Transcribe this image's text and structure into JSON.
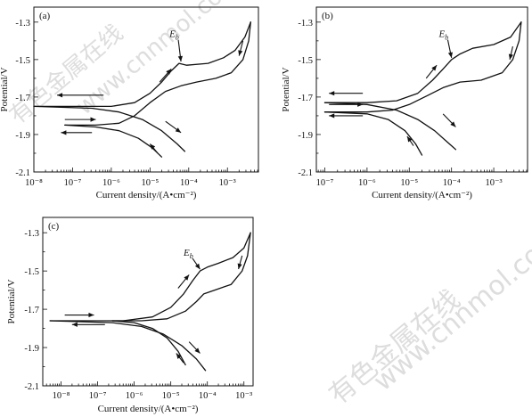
{
  "chart_data": [
    {
      "type": "line",
      "panel_label": "(a)",
      "xlabel": "Current density/(A•cm⁻²)",
      "ylabel": "Potential/V",
      "x_scale": "log",
      "xlim_log10": [
        -8,
        -2.2
      ],
      "ylim": [
        -2.1,
        -1.22
      ],
      "x_ticks": [
        {
          "log": -8,
          "label": "10⁻⁸"
        },
        {
          "log": -7,
          "label": "10⁻⁷"
        },
        {
          "log": -6,
          "label": "10⁻⁶"
        },
        {
          "log": -5,
          "label": "10⁻⁵"
        },
        {
          "log": -4,
          "label": "10⁻⁴"
        },
        {
          "log": -3,
          "label": "10⁻³"
        }
      ],
      "y_ticks": [
        {
          "value": -1.3,
          "label": "-1.3"
        },
        {
          "value": -1.5,
          "label": "-1.5"
        },
        {
          "value": -1.7,
          "label": "-1.7"
        },
        {
          "value": -1.9,
          "label": "-1.9"
        },
        {
          "value": -2.1,
          "label": "-2.1"
        }
      ],
      "annotation": {
        "text": "E",
        "sub": "b",
        "at": {
          "log": -4.2,
          "value": -1.52
        },
        "label_at": {
          "log": -4.5,
          "value": -1.38
        }
      },
      "series": [
        {
          "points": [
            [
              -2.4,
              -1.3
            ],
            [
              -2.55,
              -1.38
            ],
            [
              -2.8,
              -1.45
            ],
            [
              -3.1,
              -1.49
            ],
            [
              -3.5,
              -1.52
            ],
            [
              -4.05,
              -1.53
            ],
            [
              -4.25,
              -1.52
            ],
            [
              -4.45,
              -1.56
            ],
            [
              -4.7,
              -1.62
            ],
            [
              -5.0,
              -1.68
            ],
            [
              -5.4,
              -1.73
            ],
            [
              -6.0,
              -1.75
            ],
            [
              -8.0,
              -1.75
            ]
          ]
        },
        {
          "points": [
            [
              -2.4,
              -1.3
            ],
            [
              -2.45,
              -1.4
            ],
            [
              -2.6,
              -1.5
            ],
            [
              -2.9,
              -1.57
            ],
            [
              -3.3,
              -1.6
            ],
            [
              -3.8,
              -1.62
            ],
            [
              -4.2,
              -1.64
            ],
            [
              -4.6,
              -1.67
            ],
            [
              -5.0,
              -1.73
            ],
            [
              -5.4,
              -1.8
            ],
            [
              -5.8,
              -1.84
            ],
            [
              -6.4,
              -1.85
            ],
            [
              -7.2,
              -1.85
            ]
          ]
        },
        {
          "points": [
            [
              -8.0,
              -1.75
            ],
            [
              -6.5,
              -1.76
            ],
            [
              -5.8,
              -1.78
            ],
            [
              -5.2,
              -1.82
            ],
            [
              -4.7,
              -1.88
            ],
            [
              -4.3,
              -1.95
            ],
            [
              -4.1,
              -1.99
            ]
          ]
        },
        {
          "points": [
            [
              -7.2,
              -1.85
            ],
            [
              -6.4,
              -1.86
            ],
            [
              -5.8,
              -1.88
            ],
            [
              -5.3,
              -1.92
            ],
            [
              -4.95,
              -1.97
            ],
            [
              -4.7,
              -2.02
            ]
          ]
        }
      ],
      "arrows": [
        {
          "from": [
            -6.2,
            -1.69
          ],
          "to": [
            -7.4,
            -1.69
          ]
        },
        {
          "from": [
            -7.2,
            -1.82
          ],
          "to": [
            -6.4,
            -1.82
          ]
        },
        {
          "from": [
            -6.5,
            -1.89
          ],
          "to": [
            -7.3,
            -1.89
          ]
        },
        {
          "from": [
            -4.75,
            -1.62
          ],
          "to": [
            -4.45,
            -1.55
          ]
        },
        {
          "from": [
            -4.6,
            -1.83
          ],
          "to": [
            -4.2,
            -1.89
          ]
        },
        {
          "from": [
            -4.8,
            -2.0
          ],
          "to": [
            -5.0,
            -1.95
          ]
        },
        {
          "from": [
            -2.6,
            -1.4
          ],
          "to": [
            -2.7,
            -1.48
          ]
        }
      ]
    },
    {
      "type": "line",
      "panel_label": "(b)",
      "xlabel": "Current density/(A•cm⁻²)",
      "ylabel": "Potential/V",
      "x_scale": "log",
      "xlim_log10": [
        -7.2,
        -2.2
      ],
      "ylim": [
        -2.1,
        -1.22
      ],
      "x_ticks": [
        {
          "log": -7,
          "label": "10⁻⁷"
        },
        {
          "log": -6,
          "label": "10⁻⁶"
        },
        {
          "log": -5,
          "label": "10⁻⁵"
        },
        {
          "log": -4,
          "label": "10⁻⁴"
        },
        {
          "log": -3,
          "label": "10⁻³"
        }
      ],
      "y_ticks": [
        {
          "value": -1.3,
          "label": "-1.3"
        },
        {
          "value": -1.5,
          "label": "-1.5"
        },
        {
          "value": -1.7,
          "label": "-1.7"
        },
        {
          "value": -1.9,
          "label": "-1.9"
        },
        {
          "value": -2.1,
          "label": "-2.1"
        }
      ],
      "annotation": {
        "text": "E",
        "sub": "b",
        "at": {
          "log": -4.0,
          "value": -1.5
        },
        "label_at": {
          "log": -4.3,
          "value": -1.38
        }
      },
      "series": [
        {
          "points": [
            [
              -2.35,
              -1.3
            ],
            [
              -2.6,
              -1.38
            ],
            [
              -3.0,
              -1.42
            ],
            [
              -3.5,
              -1.44
            ],
            [
              -3.8,
              -1.47
            ],
            [
              -4.0,
              -1.5
            ],
            [
              -4.2,
              -1.55
            ],
            [
              -4.45,
              -1.61
            ],
            [
              -4.8,
              -1.68
            ],
            [
              -5.3,
              -1.72
            ],
            [
              -6.0,
              -1.73
            ],
            [
              -7.0,
              -1.73
            ]
          ]
        },
        {
          "points": [
            [
              -2.35,
              -1.3
            ],
            [
              -2.4,
              -1.4
            ],
            [
              -2.55,
              -1.5
            ],
            [
              -2.8,
              -1.57
            ],
            [
              -3.3,
              -1.61
            ],
            [
              -3.8,
              -1.62
            ],
            [
              -4.2,
              -1.65
            ],
            [
              -4.55,
              -1.69
            ],
            [
              -5.0,
              -1.74
            ],
            [
              -5.4,
              -1.77
            ],
            [
              -6.0,
              -1.78
            ],
            [
              -7.0,
              -1.78
            ]
          ]
        },
        {
          "points": [
            [
              -7.0,
              -1.73
            ],
            [
              -6.0,
              -1.74
            ],
            [
              -5.3,
              -1.77
            ],
            [
              -4.8,
              -1.82
            ],
            [
              -4.4,
              -1.88
            ],
            [
              -4.1,
              -1.94
            ],
            [
              -3.9,
              -1.98
            ]
          ]
        },
        {
          "points": [
            [
              -7.0,
              -1.78
            ],
            [
              -6.0,
              -1.79
            ],
            [
              -5.5,
              -1.82
            ],
            [
              -5.1,
              -1.88
            ],
            [
              -4.85,
              -1.95
            ],
            [
              -4.7,
              -2.01
            ]
          ]
        }
      ],
      "arrows": [
        {
          "from": [
            -6.1,
            -1.68
          ],
          "to": [
            -6.9,
            -1.68
          ]
        },
        {
          "from": [
            -6.9,
            -1.74
          ],
          "to": [
            -6.1,
            -1.74
          ]
        },
        {
          "from": [
            -6.1,
            -1.8
          ],
          "to": [
            -6.9,
            -1.8
          ]
        },
        {
          "from": [
            -4.6,
            -1.6
          ],
          "to": [
            -4.35,
            -1.53
          ]
        },
        {
          "from": [
            -4.2,
            -1.79
          ],
          "to": [
            -3.9,
            -1.86
          ]
        },
        {
          "from": [
            -4.9,
            -1.96
          ],
          "to": [
            -5.05,
            -1.91
          ]
        },
        {
          "from": [
            -2.55,
            -1.43
          ],
          "to": [
            -2.62,
            -1.5
          ]
        }
      ]
    },
    {
      "type": "line",
      "panel_label": "(c)",
      "xlabel": "Current density/(A•cm⁻²)",
      "ylabel": "Potential/V",
      "x_scale": "log",
      "xlim_log10": [
        -8.5,
        -2.75
      ],
      "ylim": [
        -2.1,
        -1.22
      ],
      "x_ticks": [
        {
          "log": -8,
          "label": "10⁻⁸"
        },
        {
          "log": -7,
          "label": "10⁻⁷"
        },
        {
          "log": -6,
          "label": "10⁻⁶"
        },
        {
          "log": -5,
          "label": "10⁻⁵"
        },
        {
          "log": -4,
          "label": "10⁻⁴"
        },
        {
          "log": -3,
          "label": "10⁻³"
        }
      ],
      "y_ticks": [
        {
          "value": -1.3,
          "label": "-1.3"
        },
        {
          "value": -1.5,
          "label": "-1.5"
        },
        {
          "value": -1.7,
          "label": "-1.7"
        },
        {
          "value": -1.9,
          "label": "-1.9"
        },
        {
          "value": -2.1,
          "label": "-2.1"
        }
      ],
      "annotation": {
        "text": "E",
        "sub": "b",
        "at": {
          "log": -4.2,
          "value": -1.5
        },
        "label_at": {
          "log": -4.65,
          "value": -1.42
        }
      },
      "series": [
        {
          "points": [
            [
              -2.82,
              -1.3
            ],
            [
              -3.0,
              -1.38
            ],
            [
              -3.3,
              -1.43
            ],
            [
              -3.7,
              -1.46
            ],
            [
              -4.0,
              -1.48
            ],
            [
              -4.2,
              -1.5
            ],
            [
              -4.4,
              -1.55
            ],
            [
              -4.65,
              -1.62
            ],
            [
              -5.0,
              -1.69
            ],
            [
              -5.5,
              -1.74
            ],
            [
              -6.3,
              -1.76
            ],
            [
              -8.3,
              -1.76
            ]
          ]
        },
        {
          "points": [
            [
              -2.82,
              -1.3
            ],
            [
              -2.9,
              -1.42
            ],
            [
              -3.05,
              -1.5
            ],
            [
              -3.35,
              -1.57
            ],
            [
              -3.8,
              -1.6
            ],
            [
              -4.1,
              -1.62
            ],
            [
              -4.3,
              -1.66
            ],
            [
              -4.6,
              -1.71
            ],
            [
              -5.1,
              -1.75
            ],
            [
              -5.8,
              -1.76
            ],
            [
              -6.6,
              -1.76
            ]
          ]
        },
        {
          "points": [
            [
              -8.3,
              -1.76
            ],
            [
              -6.6,
              -1.77
            ],
            [
              -5.8,
              -1.79
            ],
            [
              -5.2,
              -1.83
            ],
            [
              -4.7,
              -1.89
            ],
            [
              -4.3,
              -1.96
            ],
            [
              -4.05,
              -2.02
            ]
          ]
        },
        {
          "points": [
            [
              -6.6,
              -1.76
            ],
            [
              -6.0,
              -1.77
            ],
            [
              -5.5,
              -1.8
            ],
            [
              -5.1,
              -1.85
            ],
            [
              -4.8,
              -1.92
            ],
            [
              -4.6,
              -1.99
            ]
          ]
        }
      ],
      "arrows": [
        {
          "from": [
            -7.9,
            -1.73
          ],
          "to": [
            -7.1,
            -1.73
          ]
        },
        {
          "from": [
            -6.8,
            -1.78
          ],
          "to": [
            -7.7,
            -1.78
          ]
        },
        {
          "from": [
            -4.8,
            -1.59
          ],
          "to": [
            -4.5,
            -1.52
          ]
        },
        {
          "from": [
            -4.5,
            -1.87
          ],
          "to": [
            -4.2,
            -1.93
          ]
        },
        {
          "from": [
            -4.65,
            -1.98
          ],
          "to": [
            -4.85,
            -1.93
          ]
        },
        {
          "from": [
            -3.05,
            -1.42
          ],
          "to": [
            -3.15,
            -1.49
          ]
        }
      ]
    }
  ],
  "watermark": {
    "text": "有色金属在线",
    "url": "www.cnnmol.com"
  }
}
